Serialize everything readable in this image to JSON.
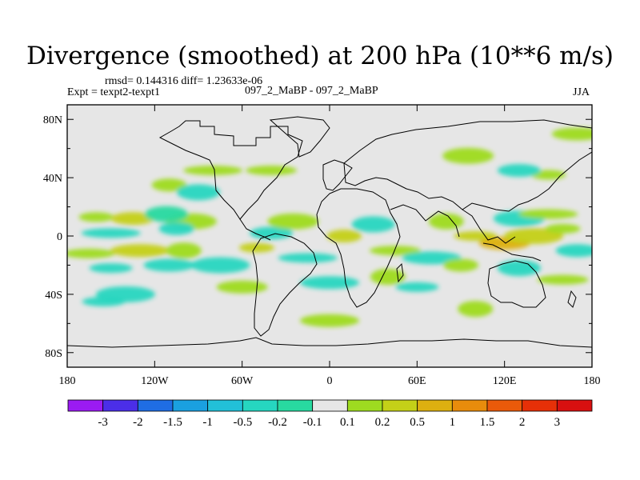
{
  "chart_data": {
    "type": "heatmap",
    "title": "Divergence (smoothed) at 200 hPa (10**6 m/s)",
    "stats": "rmsd= 0.144316 diff= 1.23633e-06",
    "experiment": "Expt = texpt2-texpt1",
    "case_label": "097_2_MaBP - 097_2_MaBP",
    "season": "JJA",
    "x_tick_labels": [
      "180",
      "120W",
      "60W",
      "0",
      "60E",
      "120E",
      "180"
    ],
    "y_tick_labels": [
      "80N",
      "40N",
      "0",
      "40S",
      "80S"
    ],
    "xlim": [
      -180,
      180
    ],
    "ylim": [
      -90,
      90
    ],
    "colorbar_labels": [
      "-3",
      "-2",
      "-1.5",
      "-1",
      "-0.5",
      "-0.2",
      "-0.1",
      "0.1",
      "0.2",
      "0.5",
      "1",
      "1.5",
      "2",
      "3"
    ],
    "colorbar_colors": [
      "#9b1bf2",
      "#4b2ee8",
      "#1f6de4",
      "#1aa0e0",
      "#22c0d8",
      "#26d6c0",
      "#28d9a0",
      "#e6e6e6",
      "#9edb20",
      "#c4d018",
      "#ddb010",
      "#e88c0c",
      "#ea5a0a",
      "#e63008",
      "#d81010"
    ],
    "blobs": [
      {
        "lon": -160,
        "lat": 13,
        "v": 0.2
      },
      {
        "lon": -135,
        "lat": 12,
        "v": 0.5
      },
      {
        "lon": -95,
        "lat": 10,
        "v": 0.2
      },
      {
        "lon": -150,
        "lat": 2,
        "v": -0.2
      },
      {
        "lon": -105,
        "lat": 5,
        "v": -0.2
      },
      {
        "lon": -112,
        "lat": 15,
        "v": -0.1
      },
      {
        "lon": -165,
        "lat": -12,
        "v": 0.2
      },
      {
        "lon": -130,
        "lat": -10,
        "v": 0.5
      },
      {
        "lon": -100,
        "lat": -10,
        "v": 0.2
      },
      {
        "lon": -150,
        "lat": -22,
        "v": -0.2
      },
      {
        "lon": -110,
        "lat": -20,
        "v": -0.2
      },
      {
        "lon": -75,
        "lat": -20,
        "v": -0.2
      },
      {
        "lon": -50,
        "lat": -8,
        "v": 0.5
      },
      {
        "lon": -40,
        "lat": 2,
        "v": -0.2
      },
      {
        "lon": -25,
        "lat": 10,
        "v": 0.2
      },
      {
        "lon": -15,
        "lat": -15,
        "v": -0.2
      },
      {
        "lon": 10,
        "lat": 0,
        "v": 0.5
      },
      {
        "lon": 30,
        "lat": 8,
        "v": -0.2
      },
      {
        "lon": 45,
        "lat": -10,
        "v": 0.2
      },
      {
        "lon": 70,
        "lat": -15,
        "v": -0.2
      },
      {
        "lon": 80,
        "lat": 10,
        "v": 0.2
      },
      {
        "lon": 100,
        "lat": 0,
        "v": 0.5
      },
      {
        "lon": 120,
        "lat": -5,
        "v": 1.0
      },
      {
        "lon": 140,
        "lat": 0,
        "v": 0.5
      },
      {
        "lon": 160,
        "lat": 5,
        "v": 0.2
      },
      {
        "lon": 170,
        "lat": -10,
        "v": -0.2
      },
      {
        "lon": 130,
        "lat": 12,
        "v": -0.2
      },
      {
        "lon": 150,
        "lat": 15,
        "v": 0.2
      },
      {
        "lon": 90,
        "lat": -20,
        "v": 0.2
      },
      {
        "lon": 130,
        "lat": -22,
        "v": -0.2
      },
      {
        "lon": 160,
        "lat": -30,
        "v": 0.2
      },
      {
        "lon": 0,
        "lat": -32,
        "v": -0.2
      },
      {
        "lon": 40,
        "lat": -28,
        "v": 0.2
      },
      {
        "lon": 60,
        "lat": -35,
        "v": -0.2
      },
      {
        "lon": -60,
        "lat": -35,
        "v": 0.2
      },
      {
        "lon": -140,
        "lat": -40,
        "v": -0.2
      },
      {
        "lon": 150,
        "lat": 42,
        "v": 0.2
      },
      {
        "lon": 130,
        "lat": 45,
        "v": -0.2
      },
      {
        "lon": 95,
        "lat": 55,
        "v": 0.2
      },
      {
        "lon": -80,
        "lat": 45,
        "v": 0.2
      },
      {
        "lon": -110,
        "lat": 35,
        "v": 0.2
      },
      {
        "lon": -90,
        "lat": 30,
        "v": -0.2
      },
      {
        "lon": -40,
        "lat": 45,
        "v": 0.2
      },
      {
        "lon": 0,
        "lat": -58,
        "v": 0.2
      },
      {
        "lon": 100,
        "lat": -50,
        "v": 0.2
      },
      {
        "lon": -155,
        "lat": -45,
        "v": -0.2
      },
      {
        "lon": 170,
        "lat": 70,
        "v": 0.2
      }
    ]
  }
}
